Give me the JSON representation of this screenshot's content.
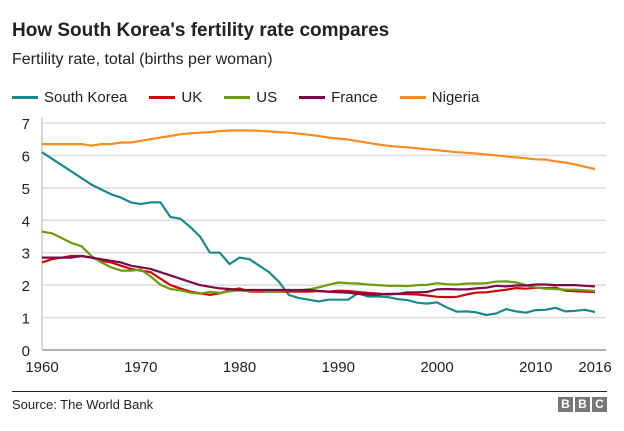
{
  "chart_data": {
    "type": "line",
    "title": "How South Korea's fertility rate compares",
    "subtitle": "Fertility rate, total (births per woman)",
    "x_start": 1960,
    "x_end": 2016,
    "xticks": [
      "1960",
      "1970",
      "1980",
      "1990",
      "2000",
      "2010",
      "2016"
    ],
    "yticks": [
      "0",
      "1",
      "2",
      "3",
      "4",
      "5",
      "6",
      "7"
    ],
    "ylim": [
      0,
      7
    ],
    "grid": true,
    "legend": "top",
    "series": [
      {
        "name": "South Korea",
        "color": "#1a8a8a",
        "values": [
          6.1,
          5.9,
          5.7,
          5.5,
          5.3,
          5.1,
          4.95,
          4.8,
          4.7,
          4.55,
          4.5,
          4.55,
          4.55,
          4.1,
          4.05,
          3.8,
          3.5,
          3.0,
          3.0,
          2.65,
          2.85,
          2.8,
          2.6,
          2.4,
          2.1,
          1.7,
          1.6,
          1.55,
          1.5,
          1.55,
          1.55,
          1.55,
          1.75,
          1.65,
          1.65,
          1.63,
          1.57,
          1.54,
          1.46,
          1.43,
          1.47,
          1.31,
          1.18,
          1.19,
          1.16,
          1.08,
          1.13,
          1.26,
          1.19,
          1.15,
          1.23,
          1.24,
          1.3,
          1.19,
          1.21,
          1.24,
          1.17
        ]
      },
      {
        "name": "UK",
        "color": "#cc0a0a",
        "values": [
          2.7,
          2.8,
          2.85,
          2.9,
          2.9,
          2.85,
          2.75,
          2.7,
          2.6,
          2.5,
          2.45,
          2.4,
          2.2,
          2.0,
          1.9,
          1.8,
          1.75,
          1.7,
          1.75,
          1.85,
          1.9,
          1.8,
          1.8,
          1.8,
          1.8,
          1.8,
          1.8,
          1.8,
          1.82,
          1.8,
          1.83,
          1.82,
          1.79,
          1.76,
          1.74,
          1.71,
          1.73,
          1.72,
          1.71,
          1.68,
          1.64,
          1.63,
          1.64,
          1.71,
          1.77,
          1.78,
          1.82,
          1.86,
          1.91,
          1.89,
          1.92,
          1.91,
          1.92,
          1.83,
          1.81,
          1.8,
          1.79
        ]
      },
      {
        "name": "US",
        "color": "#6e9a0e",
        "values": [
          3.65,
          3.6,
          3.45,
          3.3,
          3.2,
          2.9,
          2.7,
          2.55,
          2.45,
          2.45,
          2.48,
          2.27,
          2.01,
          1.88,
          1.84,
          1.77,
          1.74,
          1.79,
          1.76,
          1.81,
          1.84,
          1.81,
          1.83,
          1.8,
          1.81,
          1.84,
          1.84,
          1.87,
          1.93,
          2.01,
          2.08,
          2.06,
          2.05,
          2.02,
          2.0,
          1.98,
          1.98,
          1.97,
          2.0,
          2.01,
          2.06,
          2.03,
          2.02,
          2.05,
          2.05,
          2.06,
          2.11,
          2.12,
          2.08,
          2.0,
          1.93,
          1.89,
          1.88,
          1.86,
          1.86,
          1.84,
          1.82
        ]
      },
      {
        "name": "France",
        "color": "#7a0a4a",
        "values": [
          2.85,
          2.85,
          2.85,
          2.85,
          2.9,
          2.85,
          2.8,
          2.75,
          2.7,
          2.6,
          2.55,
          2.5,
          2.4,
          2.3,
          2.2,
          2.1,
          2.0,
          1.95,
          1.9,
          1.88,
          1.85,
          1.85,
          1.85,
          1.85,
          1.85,
          1.85,
          1.85,
          1.85,
          1.82,
          1.8,
          1.78,
          1.77,
          1.73,
          1.71,
          1.71,
          1.73,
          1.73,
          1.78,
          1.78,
          1.79,
          1.87,
          1.88,
          1.87,
          1.87,
          1.9,
          1.92,
          1.98,
          1.96,
          1.99,
          1.99,
          2.02,
          2.02,
          2.0,
          2.0,
          2.0,
          1.98,
          1.96
        ]
      },
      {
        "name": "Nigeria",
        "color": "#fa8c1e",
        "values": [
          6.35,
          6.35,
          6.35,
          6.35,
          6.35,
          6.3,
          6.35,
          6.35,
          6.4,
          6.4,
          6.45,
          6.5,
          6.55,
          6.6,
          6.65,
          6.68,
          6.7,
          6.72,
          6.75,
          6.77,
          6.77,
          6.77,
          6.76,
          6.74,
          6.72,
          6.7,
          6.67,
          6.64,
          6.6,
          6.55,
          6.52,
          6.49,
          6.44,
          6.39,
          6.34,
          6.3,
          6.27,
          6.25,
          6.22,
          6.19,
          6.16,
          6.13,
          6.1,
          6.08,
          6.06,
          6.03,
          6.0,
          5.97,
          5.94,
          5.91,
          5.88,
          5.87,
          5.82,
          5.78,
          5.72,
          5.65,
          5.58
        ]
      }
    ]
  },
  "footer": {
    "source": "Source: The World Bank",
    "logo": "BBC"
  }
}
